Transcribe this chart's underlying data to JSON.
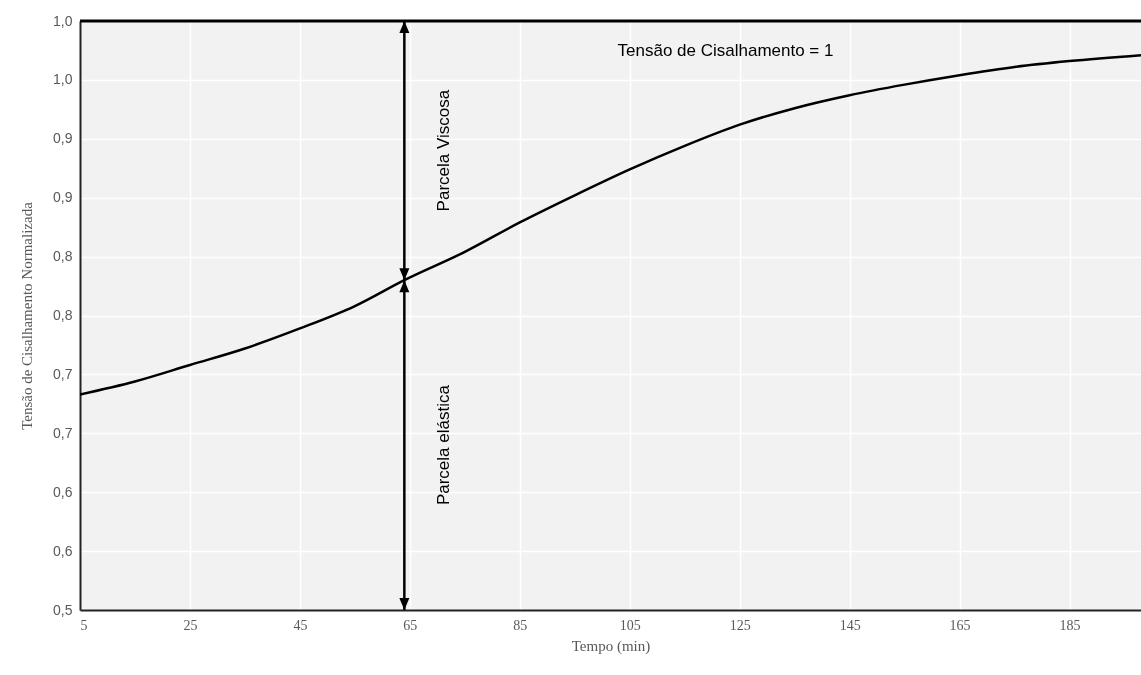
{
  "chart_data": {
    "type": "line",
    "xlabel": "Tempo (min)",
    "ylabel": "Tensão de Cisalhamento Normalizada",
    "x": [
      5,
      15,
      25,
      35,
      45,
      55,
      64,
      75,
      85,
      95,
      105,
      115,
      125,
      135,
      145,
      155,
      165,
      175,
      185,
      198
    ],
    "series": [
      {
        "color": "#000000",
        "values": [
          0.683,
          0.694,
          0.708,
          0.722,
          0.739,
          0.758,
          0.78,
          0.804,
          0.829,
          0.852,
          0.874,
          0.894,
          0.912,
          0.926,
          0.937,
          0.946,
          0.954,
          0.961,
          0.966,
          0.971
        ]
      }
    ],
    "xlim": [
      5,
      198
    ],
    "xticks": [
      5,
      25,
      45,
      65,
      85,
      105,
      125,
      145,
      165,
      185
    ],
    "ylim": [
      0.5,
      1.0
    ],
    "yticks": [
      {
        "value": 0.5,
        "label": "0,5"
      },
      {
        "value": 0.55,
        "label": "0,6"
      },
      {
        "value": 0.6,
        "label": "0,6"
      },
      {
        "value": 0.65,
        "label": "0,7"
      },
      {
        "value": 0.7,
        "label": "0,7"
      },
      {
        "value": 0.75,
        "label": "0,8"
      },
      {
        "value": 0.8,
        "label": "0,8"
      },
      {
        "value": 0.85,
        "label": "0,9"
      },
      {
        "value": 0.9,
        "label": "0,9"
      },
      {
        "value": 0.95,
        "label": "1,0"
      },
      {
        "value": 1.0,
        "label": "1,0"
      }
    ],
    "ref_lines": [
      {
        "axis": "y",
        "value": 1.0,
        "label": "Tensão de Cisalhamento = 1",
        "color": "#000000"
      },
      {
        "axis": "x",
        "value": 64,
        "color": "#000000"
      }
    ],
    "annotations": [
      "Parcela Viscosa",
      "Parcela elástica"
    ],
    "grid": true,
    "marker": "none"
  }
}
